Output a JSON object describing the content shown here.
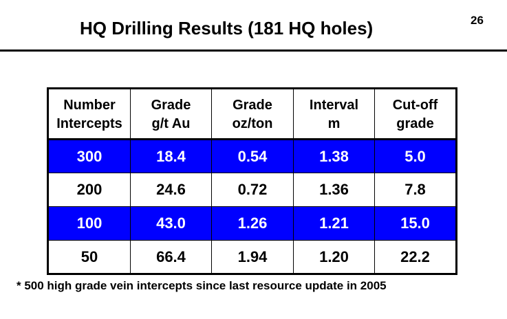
{
  "slide": {
    "title": "HQ Drilling Results (181 HQ holes)",
    "page_number": "26",
    "footnote": "* 500 high grade  vein intercepts since last resource update in 2005"
  },
  "colors": {
    "highlight_row": "#0000ff",
    "highlight_text": "#ffffff"
  },
  "table": {
    "headers": [
      [
        "Number",
        "Intercepts"
      ],
      [
        "Grade",
        "g/t Au"
      ],
      [
        "Grade",
        "oz/ton"
      ],
      [
        "Interval",
        "m"
      ],
      [
        "Cut-off",
        "grade"
      ]
    ],
    "rows": [
      [
        "300",
        "18.4",
        "0.54",
        "1.38",
        "5.0"
      ],
      [
        "200",
        "24.6",
        "0.72",
        "1.36",
        "7.8"
      ],
      [
        "100",
        "43.0",
        "1.26",
        "1.21",
        "15.0"
      ],
      [
        "50",
        "66.4",
        "1.94",
        "1.20",
        "22.2"
      ]
    ]
  }
}
